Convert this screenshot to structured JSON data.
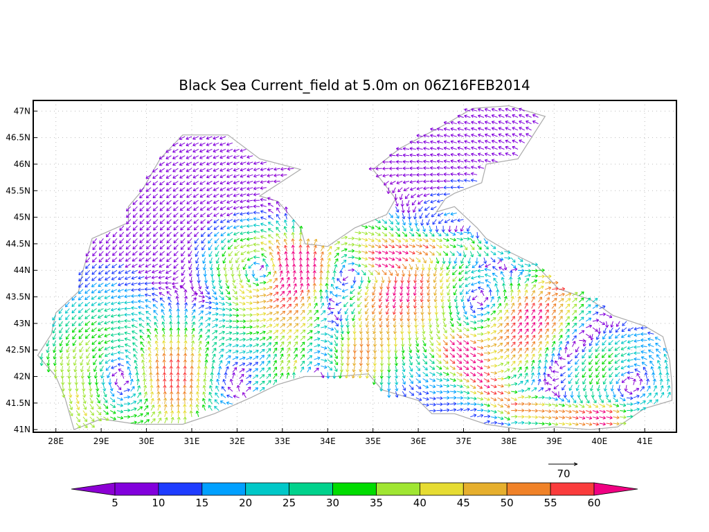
{
  "title": "Black Sea Current_field at 5.0m on 06Z16FEB2014",
  "map": {
    "lon_range": [
      27.5,
      41.7
    ],
    "lat_range": [
      40.95,
      47.2
    ],
    "lon_ticks": [
      {
        "value": 28,
        "label": "28E"
      },
      {
        "value": 29,
        "label": "29E"
      },
      {
        "value": 30,
        "label": "30E"
      },
      {
        "value": 31,
        "label": "31E"
      },
      {
        "value": 32,
        "label": "32E"
      },
      {
        "value": 33,
        "label": "33E"
      },
      {
        "value": 34,
        "label": "34E"
      },
      {
        "value": 35,
        "label": "35E"
      },
      {
        "value": 36,
        "label": "36E"
      },
      {
        "value": 37,
        "label": "37E"
      },
      {
        "value": 38,
        "label": "38E"
      },
      {
        "value": 39,
        "label": "39E"
      },
      {
        "value": 40,
        "label": "40E"
      },
      {
        "value": 41,
        "label": "41E"
      }
    ],
    "lat_ticks": [
      {
        "value": 47,
        "label": "47N"
      },
      {
        "value": 46.5,
        "label": "46.5N"
      },
      {
        "value": 46,
        "label": "46N"
      },
      {
        "value": 45.5,
        "label": "45.5N"
      },
      {
        "value": 45,
        "label": "45N"
      },
      {
        "value": 44.5,
        "label": "44.5N"
      },
      {
        "value": 44,
        "label": "44N"
      },
      {
        "value": 43.5,
        "label": "43.5N"
      },
      {
        "value": 43,
        "label": "43N"
      },
      {
        "value": 42.5,
        "label": "42.5N"
      },
      {
        "value": 42,
        "label": "42N"
      },
      {
        "value": 41.5,
        "label": "41.5N"
      },
      {
        "value": 41,
        "label": "41N"
      }
    ],
    "grid": true,
    "grid_style": "dotted",
    "coastline_color": "#aaaaaa",
    "sea_outline": [
      [
        28.4,
        41.0
      ],
      [
        29.0,
        41.2
      ],
      [
        29.8,
        41.1
      ],
      [
        30.8,
        41.1
      ],
      [
        31.5,
        41.3
      ],
      [
        32.3,
        41.6
      ],
      [
        32.9,
        41.85
      ],
      [
        33.5,
        42.0
      ],
      [
        34.2,
        42.0
      ],
      [
        34.9,
        42.05
      ],
      [
        35.2,
        41.75
      ],
      [
        35.6,
        41.65
      ],
      [
        36.0,
        41.55
      ],
      [
        36.3,
        41.3
      ],
      [
        36.8,
        41.3
      ],
      [
        37.5,
        41.1
      ],
      [
        38.3,
        41.0
      ],
      [
        39.0,
        41.05
      ],
      [
        39.8,
        41.0
      ],
      [
        40.4,
        41.05
      ],
      [
        41.0,
        41.4
      ],
      [
        41.6,
        41.55
      ],
      [
        41.6,
        41.85
      ],
      [
        41.55,
        42.3
      ],
      [
        41.4,
        42.75
      ],
      [
        41.0,
        42.95
      ],
      [
        40.3,
        43.15
      ],
      [
        39.8,
        43.45
      ],
      [
        39.1,
        43.65
      ],
      [
        38.6,
        44.1
      ],
      [
        38.0,
        44.35
      ],
      [
        37.5,
        44.6
      ],
      [
        37.3,
        44.8
      ],
      [
        36.8,
        45.2
      ],
      [
        36.4,
        45.1
      ],
      [
        36.6,
        45.35
      ],
      [
        36.8,
        45.45
      ],
      [
        37.4,
        45.65
      ],
      [
        37.5,
        46.0
      ],
      [
        38.2,
        46.1
      ],
      [
        38.8,
        46.9
      ],
      [
        38.0,
        47.1
      ],
      [
        37.2,
        47.05
      ],
      [
        36.6,
        46.75
      ],
      [
        35.6,
        46.3
      ],
      [
        35.0,
        45.9
      ],
      [
        35.5,
        45.35
      ],
      [
        35.3,
        45.05
      ],
      [
        34.6,
        44.8
      ],
      [
        34.0,
        44.45
      ],
      [
        33.5,
        44.5
      ],
      [
        33.4,
        44.8
      ],
      [
        32.9,
        45.3
      ],
      [
        32.5,
        45.4
      ],
      [
        33.4,
        45.9
      ],
      [
        32.5,
        46.1
      ],
      [
        31.8,
        46.55
      ],
      [
        30.8,
        46.55
      ],
      [
        30.3,
        46.1
      ],
      [
        29.9,
        45.5
      ],
      [
        29.6,
        45.2
      ],
      [
        29.6,
        44.9
      ],
      [
        28.8,
        44.6
      ],
      [
        28.6,
        44.0
      ],
      [
        28.5,
        43.6
      ],
      [
        28.0,
        43.2
      ],
      [
        27.9,
        42.8
      ],
      [
        27.6,
        42.4
      ],
      [
        28.0,
        42.0
      ],
      [
        28.2,
        41.6
      ],
      [
        28.4,
        41.0
      ]
    ],
    "vector_field": {
      "grid_step_deg": [
        0.15,
        0.12
      ],
      "eddies": [
        {
          "center": [
            29.8,
            41.9
          ],
          "radius_deg": 0.9,
          "rotation": "cyclonic",
          "max_speed": 40
        },
        {
          "center": [
            31.3,
            42.0
          ],
          "radius_deg": 0.8,
          "rotation": "anticyclonic",
          "max_speed": 35
        },
        {
          "center": [
            33.8,
            42.4
          ],
          "radius_deg": 0.6,
          "rotation": "anticyclonic",
          "max_speed": 45
        },
        {
          "center": [
            32.6,
            44.0
          ],
          "radius_deg": 0.45,
          "rotation": "cyclonic",
          "max_speed": 40
        },
        {
          "center": [
            34.5,
            43.9
          ],
          "radius_deg": 0.7,
          "rotation": "anticyclonic",
          "max_speed": 45
        },
        {
          "center": [
            39.4,
            42.5
          ],
          "radius_deg": 0.8,
          "rotation": "anticyclonic",
          "max_speed": 30
        },
        {
          "center": [
            40.4,
            42.0
          ],
          "radius_deg": 0.7,
          "rotation": "cyclonic",
          "max_speed": 30
        },
        {
          "center": [
            37.6,
            43.4
          ],
          "radius_deg": 0.9,
          "rotation": "cyclonic",
          "max_speed": 35
        }
      ],
      "jets": [
        {
          "path": [
            [
              35.2,
              44.2
            ],
            [
              36.0,
              44.45
            ],
            [
              37.0,
              44.55
            ],
            [
              38.0,
              44.3
            ],
            [
              39.0,
              43.7
            ]
          ],
          "max_speed": 60
        },
        {
          "path": [
            [
              36.9,
              42.5
            ],
            [
              37.4,
              41.9
            ],
            [
              38.0,
              41.45
            ],
            [
              39.0,
              41.3
            ],
            [
              40.0,
              41.25
            ]
          ],
          "max_speed": 55
        },
        {
          "path": [
            [
              32.5,
              41.8
            ],
            [
              33.3,
              42.1
            ],
            [
              34.0,
              42.2
            ]
          ],
          "max_speed": 40
        }
      ]
    }
  },
  "reference_vector": {
    "value": 70,
    "label": "70"
  },
  "colorbar": {
    "colors": [
      "#8c00d4",
      "#8200dc",
      "#1e3cff",
      "#00a0ff",
      "#00c8c8",
      "#00d28c",
      "#00dc00",
      "#a0e632",
      "#e6dc32",
      "#e6af2d",
      "#f08228",
      "#fa3c3c",
      "#f00082"
    ],
    "labels": [
      "5",
      "10",
      "15",
      "20",
      "25",
      "30",
      "35",
      "40",
      "45",
      "50",
      "55",
      "60"
    ],
    "thresholds": [
      5,
      10,
      15,
      20,
      25,
      30,
      35,
      40,
      45,
      50,
      55,
      60
    ]
  }
}
